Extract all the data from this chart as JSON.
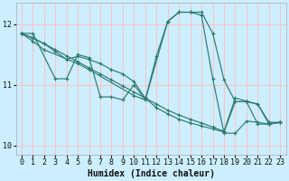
{
  "xlabel": "Humidex (Indice chaleur)",
  "bg_color": "#cceeff",
  "grid_color": "#ffaaaa",
  "line_color": "#2d7b6f",
  "xlim": [
    0,
    23
  ],
  "ylim": [
    9.85,
    12.35
  ],
  "yticks": [
    10,
    11,
    12
  ],
  "xticks": [
    0,
    1,
    2,
    3,
    4,
    5,
    6,
    7,
    8,
    9,
    10,
    11,
    12,
    13,
    14,
    15,
    16,
    17,
    18,
    19,
    20,
    21,
    22,
    23
  ],
  "series": [
    {
      "x": [
        0,
        1,
        3,
        4,
        5,
        6,
        7,
        8,
        9,
        10,
        11,
        13,
        14,
        15,
        16,
        17,
        18,
        19,
        20,
        21,
        22,
        23
      ],
      "y": [
        11.85,
        11.85,
        11.1,
        11.1,
        11.5,
        11.45,
        10.8,
        10.8,
        10.75,
        11.0,
        10.75,
        12.05,
        12.2,
        12.2,
        12.15,
        11.1,
        10.2,
        10.2,
        10.4,
        10.38,
        10.35,
        10.38
      ]
    },
    {
      "x": [
        0,
        1,
        2,
        3,
        4,
        5,
        6,
        7,
        8,
        9,
        10,
        11,
        12,
        13,
        14,
        15,
        16,
        17,
        18,
        19,
        20,
        21,
        22,
        23
      ],
      "y": [
        11.85,
        11.77,
        11.68,
        11.58,
        11.48,
        11.38,
        11.28,
        11.18,
        11.08,
        10.98,
        10.88,
        10.78,
        10.68,
        10.58,
        10.5,
        10.43,
        10.37,
        10.3,
        10.23,
        10.78,
        10.73,
        10.68,
        10.38,
        10.38
      ]
    },
    {
      "x": [
        0,
        1,
        2,
        5,
        6,
        10,
        11,
        12,
        13,
        14,
        15,
        16,
        17,
        18,
        19,
        20,
        21,
        22,
        23
      ],
      "y": [
        11.85,
        11.72,
        11.58,
        11.35,
        11.25,
        10.82,
        10.75,
        11.48,
        12.05,
        12.2,
        12.2,
        12.2,
        11.85,
        11.08,
        10.72,
        10.72,
        10.35,
        10.35,
        10.38
      ]
    },
    {
      "x": [
        0,
        1,
        2,
        3,
        4,
        5,
        6,
        7,
        8,
        9,
        10,
        11,
        12,
        13,
        14,
        15,
        16,
        17,
        18,
        19,
        20,
        21,
        22,
        23
      ],
      "y": [
        11.85,
        11.78,
        11.68,
        11.55,
        11.42,
        11.47,
        11.42,
        11.35,
        11.25,
        11.18,
        11.05,
        10.78,
        10.62,
        10.52,
        10.43,
        10.37,
        10.32,
        10.27,
        10.22,
        10.72,
        10.72,
        10.68,
        10.35,
        10.38
      ]
    }
  ]
}
